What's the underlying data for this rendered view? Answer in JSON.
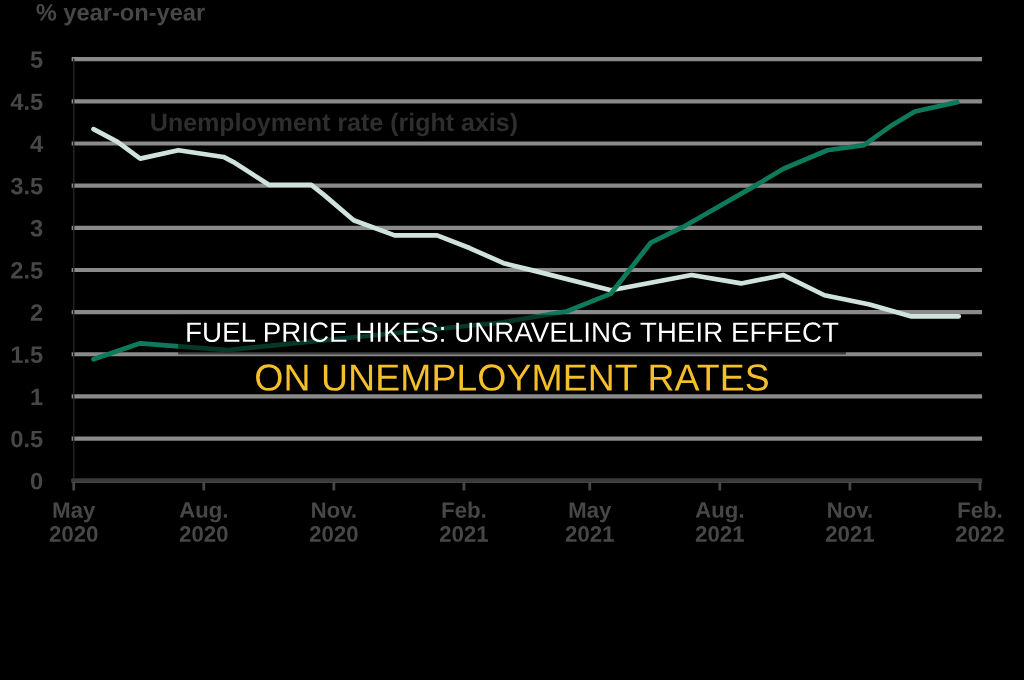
{
  "chart_data": {
    "type": "line",
    "title": "FUEL PRICE HIKES: UNRAVELING THEIR EFFECT\nON UNEMPLOYMENT RATES",
    "ylabel": "% year-on-year",
    "series": [
      {
        "name": "Unemployment rate (right axis)",
        "color": "#cfe3dc",
        "x": [
          "2020-05-15",
          "2020-06-01",
          "2020-06-17",
          "2020-07-14",
          "2020-08-15",
          "2020-08-22",
          "2020-09-16",
          "2020-10-16",
          "2020-10-25",
          "2020-11-15",
          "2020-12-14",
          "2021-01-13",
          "2021-02-05",
          "2021-03-01",
          "2021-03-18",
          "2021-05-16",
          "2021-07-12",
          "2021-08-16",
          "2021-09-15",
          "2021-10-14",
          "2021-11-15",
          "2021-12-14",
          "2022-01-17"
        ],
        "values": [
          4.17,
          4.02,
          3.82,
          3.92,
          3.84,
          3.78,
          3.51,
          3.51,
          3.39,
          3.09,
          2.91,
          2.91,
          2.76,
          2.58,
          2.51,
          2.26,
          2.44,
          2.34,
          2.44,
          2.2,
          2.09,
          1.95,
          1.95
        ]
      },
      {
        "color": "#0e7a5c",
        "x": [
          "2020-05-15",
          "2020-06-17",
          "2020-08-18",
          "2021-03-01",
          "2021-04-15",
          "2021-05-16",
          "2021-05-30",
          "2021-06-13",
          "2021-07-06",
          "2021-08-23",
          "2021-09-15",
          "2021-10-16",
          "2021-11-11",
          "2021-12-01",
          "2021-12-17",
          "2022-01-16"
        ],
        "values": [
          1.44,
          1.63,
          1.55,
          1.88,
          2.01,
          2.22,
          2.52,
          2.82,
          3.01,
          3.47,
          3.7,
          3.92,
          3.98,
          4.22,
          4.38,
          4.49
        ]
      }
    ],
    "xlim": [
      "2020-05-01",
      "2022-02-01"
    ],
    "xticks": [
      {
        "value": "2020-05-01",
        "label": "May\n2020"
      },
      {
        "value": "2020-08-01",
        "label": "Aug.\n2020"
      },
      {
        "value": "2020-11-01",
        "label": "Nov.\n2020"
      },
      {
        "value": "2021-02-01",
        "label": "Feb.\n2021"
      },
      {
        "value": "2021-05-01",
        "label": "May\n2021"
      },
      {
        "value": "2021-08-01",
        "label": "Aug.\n2021"
      },
      {
        "value": "2021-11-01",
        "label": "Nov.\n2021"
      },
      {
        "value": "2022-02-01",
        "label": "Feb.\n2022"
      }
    ],
    "ylim": [
      0,
      5
    ],
    "yticks": [
      0,
      0.5,
      1,
      1.5,
      2,
      2.5,
      3,
      3.5,
      4,
      4.5,
      5
    ],
    "grid": "y",
    "legend": false
  }
}
